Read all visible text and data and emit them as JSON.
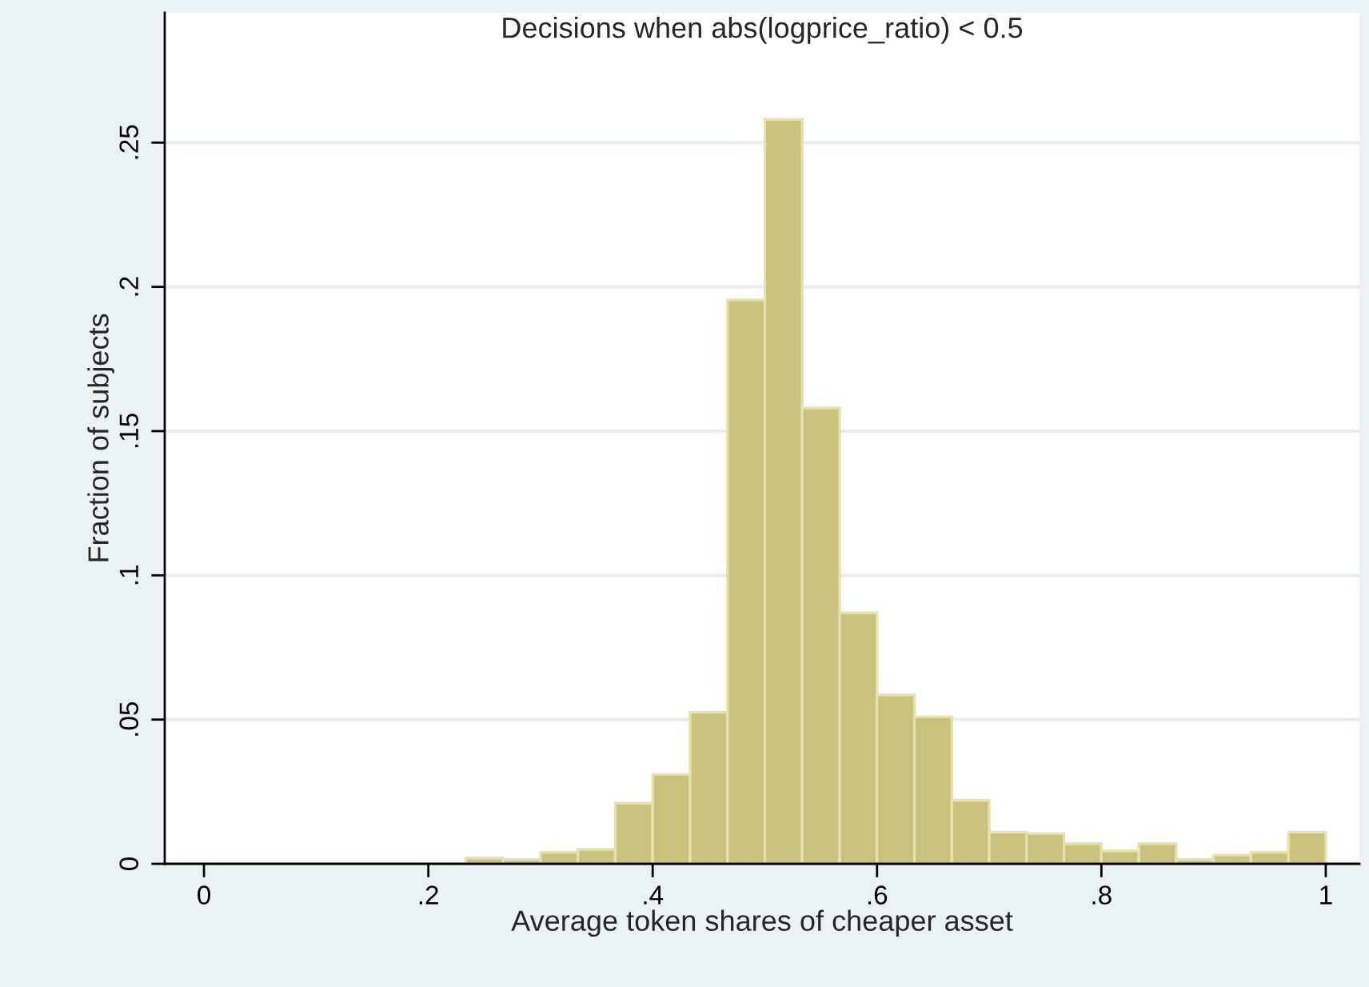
{
  "chart_data": {
    "type": "histogram",
    "title": "Decisions when abs(logprice_ratio) < 0.5",
    "xlabel": "Average token shares of cheaper asset",
    "ylabel": "Fraction of subjects",
    "bins": [
      0.2333,
      0.2667,
      0.3,
      0.3333,
      0.3667,
      0.4,
      0.4333,
      0.4667,
      0.5,
      0.5333,
      0.5667,
      0.6,
      0.6333,
      0.6667,
      0.7,
      0.7333,
      0.7667,
      0.8,
      0.8333,
      0.8667,
      0.9,
      0.9333,
      0.9667,
      1.0
    ],
    "values": [
      0.002,
      0.0015,
      0.004,
      0.005,
      0.021,
      0.031,
      0.0525,
      0.1955,
      0.258,
      0.158,
      0.087,
      0.0585,
      0.051,
      0.022,
      0.011,
      0.0105,
      0.007,
      0.0045,
      0.007,
      0.0015,
      0.003,
      0.004,
      0.011
    ],
    "color": "#c9c27c",
    "xlim": [
      -0.035,
      1.03
    ],
    "ylim": [
      0,
      0.295
    ],
    "xticks": [
      0,
      {
        "value": 0.2,
        "label": ".2"
      },
      {
        "value": 0.4,
        "label": ".4"
      },
      {
        "value": 0.6,
        "label": ".6"
      },
      {
        "value": 0.8,
        "label": ".8"
      },
      1
    ],
    "yticks": [
      0,
      {
        "value": 0.05,
        "label": ".05"
      },
      {
        "value": 0.1,
        "label": ".1"
      },
      {
        "value": 0.15,
        "label": ".15"
      },
      {
        "value": 0.2,
        "label": ".2"
      },
      {
        "value": 0.25,
        "label": ".25"
      }
    ],
    "grid": "y"
  }
}
